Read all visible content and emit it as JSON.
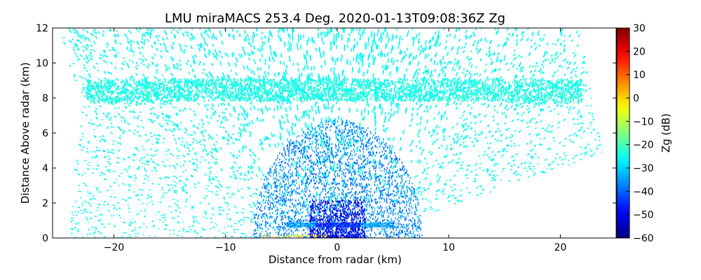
{
  "chart_data": {
    "type": "heatmap",
    "title": "LMU miraMACS 253.4 Deg. 2020-01-13T09:08:36Z  Zg",
    "xlabel": "Distance from radar (km)",
    "ylabel": "Distance Above radar  (km)",
    "xlim": [
      -25.5,
      25
    ],
    "ylim": [
      0,
      12
    ],
    "x_ticks": [
      -20,
      -10,
      0,
      10,
      20
    ],
    "x_tick_labels": [
      "−20",
      "−10",
      "0",
      "10",
      "20"
    ],
    "y_ticks": [
      0,
      2,
      4,
      6,
      8,
      10,
      12
    ],
    "y_tick_labels": [
      "0",
      "2",
      "4",
      "6",
      "8",
      "10",
      "12"
    ],
    "grid": false,
    "colorbar": {
      "label": "Zg (dB)",
      "range": [
        -60,
        30
      ],
      "ticks": [
        -60,
        -50,
        -40,
        -30,
        -20,
        -10,
        0,
        10,
        20,
        30
      ],
      "tick_labels": [
        "−60",
        "−50",
        "−40",
        "−30",
        "−20",
        "−10",
        "0",
        "10",
        "20",
        "30"
      ],
      "colormap": "jet"
    },
    "features": [
      {
        "name": "cirrus layer",
        "x_range": [
          -22.5,
          22
        ],
        "y_range": [
          7.8,
          9.2
        ],
        "value_db": -25
      },
      {
        "name": "background noise field",
        "x_range": [
          -24,
          24
        ],
        "y_range": [
          0,
          12
        ],
        "value_db": -27
      },
      {
        "name": "low-altitude weak echoes",
        "x_range": [
          -8,
          8
        ],
        "y_range": [
          0,
          6
        ],
        "value_db": -40
      },
      {
        "name": "near-radar core",
        "x_range": [
          -2.5,
          2.5
        ],
        "y_range": [
          0,
          2
        ],
        "value_db": -50
      },
      {
        "name": "ground-level band",
        "x_range": [
          -4,
          5
        ],
        "y_range": [
          0.6,
          0.9
        ],
        "value_db": -45
      }
    ]
  }
}
